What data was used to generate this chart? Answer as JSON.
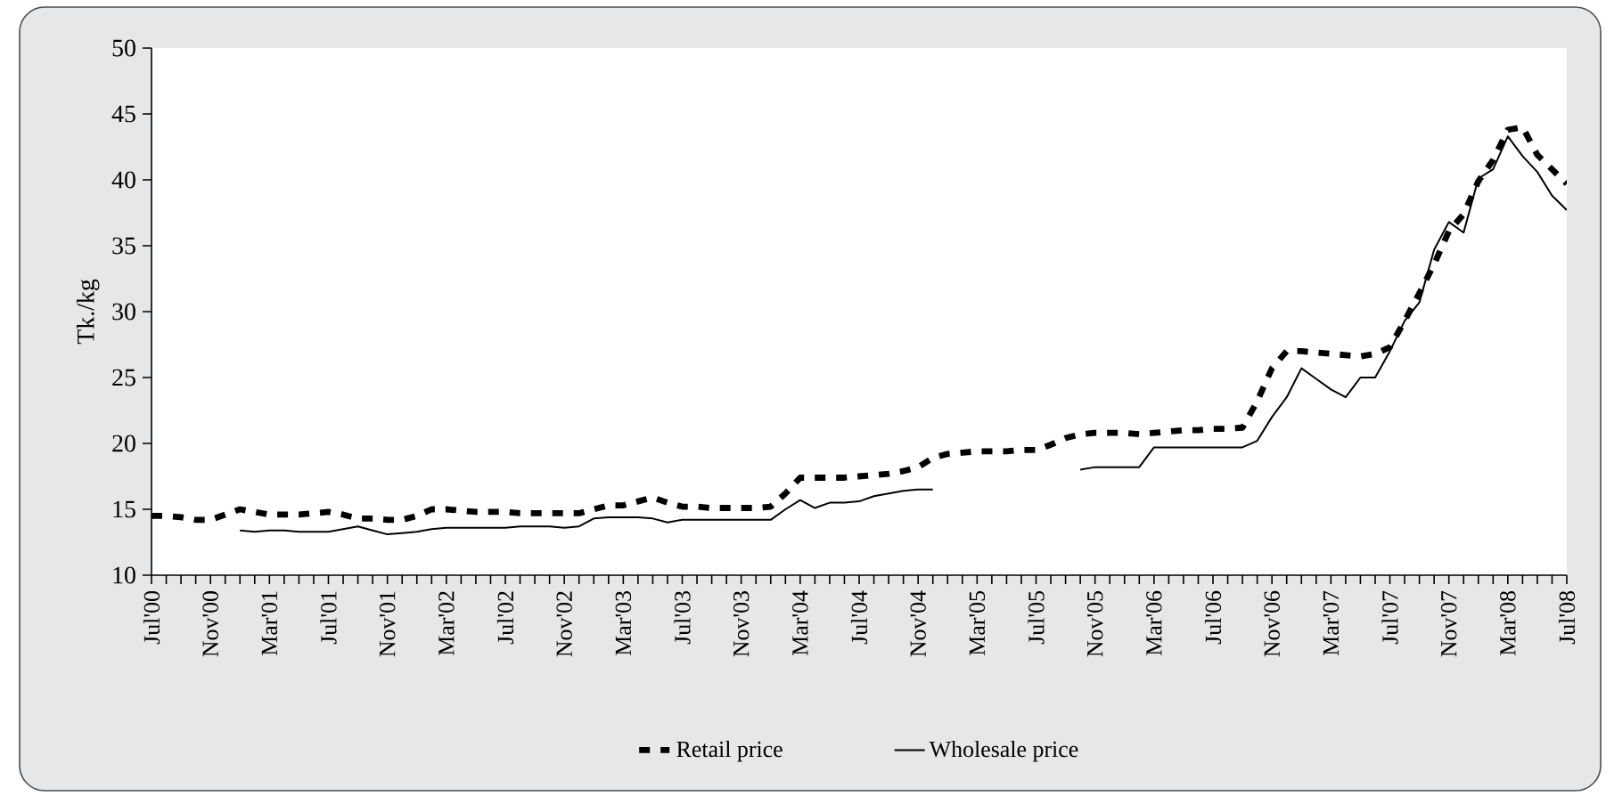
{
  "chart_data": {
    "type": "line",
    "ylabel": "Tk./kg",
    "categories": [
      "Jul'00",
      null,
      null,
      null,
      "Nov'00",
      null,
      null,
      null,
      "Mar'01",
      null,
      null,
      null,
      "Jul'01",
      null,
      null,
      null,
      "Nov'01",
      null,
      null,
      null,
      "Mar'02",
      null,
      null,
      null,
      "Jul'02",
      null,
      null,
      null,
      "Nov'02",
      null,
      null,
      null,
      "Mar'03",
      null,
      null,
      null,
      "Jul'03",
      null,
      null,
      null,
      "Nov'03",
      null,
      null,
      null,
      "Mar'04",
      null,
      null,
      null,
      "Jul'04",
      null,
      null,
      null,
      "Nov'04",
      null,
      null,
      null,
      "Mar'05",
      null,
      null,
      null,
      "Jul'05",
      null,
      null,
      null,
      "Nov'05",
      null,
      null,
      null,
      "Mar'06",
      null,
      null,
      null,
      "Jul'06",
      null,
      null,
      null,
      "Nov'06",
      null,
      null,
      null,
      "Mar'07",
      null,
      null,
      null,
      "Jul'07",
      null,
      null,
      null,
      "Nov'07",
      null,
      null,
      null,
      "Mar'08",
      null,
      null,
      null,
      "Jul'08"
    ],
    "series": [
      {
        "name": "Retail price",
        "color": "#000000",
        "line_style": "dashed",
        "values": [
          14.5,
          14.5,
          14.4,
          14.2,
          14.2,
          14.6,
          15.0,
          14.8,
          14.6,
          14.6,
          14.6,
          14.7,
          14.8,
          14.6,
          14.3,
          14.3,
          14.2,
          14.2,
          14.5,
          15.0,
          15.0,
          14.9,
          14.8,
          14.8,
          14.8,
          14.7,
          14.7,
          14.7,
          14.7,
          14.7,
          15.0,
          15.3,
          15.3,
          15.6,
          15.9,
          15.5,
          15.2,
          15.2,
          15.1,
          15.1,
          15.1,
          15.1,
          15.2,
          16.2,
          17.4,
          17.4,
          17.4,
          17.4,
          17.5,
          17.6,
          17.7,
          17.9,
          18.2,
          18.9,
          19.2,
          19.3,
          19.4,
          19.4,
          19.4,
          19.5,
          19.5,
          19.9,
          20.4,
          20.7,
          20.8,
          20.8,
          20.8,
          20.7,
          20.8,
          20.9,
          21.0,
          21.0,
          21.1,
          21.1,
          21.2,
          23.2,
          25.7,
          27.0,
          27.0,
          26.9,
          26.8,
          26.7,
          26.6,
          26.8,
          27.3,
          29.3,
          31.4,
          33.6,
          36.1,
          37.4,
          39.9,
          41.5,
          43.8,
          44.0,
          41.9,
          40.8,
          39.7
        ]
      },
      {
        "name": "Wholesale price",
        "color": "#000000",
        "line_style": "solid",
        "values": [
          null,
          null,
          null,
          null,
          null,
          null,
          13.4,
          13.3,
          13.4,
          13.4,
          13.3,
          13.3,
          13.3,
          13.5,
          13.7,
          13.4,
          13.1,
          13.2,
          13.3,
          13.5,
          13.6,
          13.6,
          13.6,
          13.6,
          13.6,
          13.7,
          13.7,
          13.7,
          13.6,
          13.7,
          14.3,
          14.4,
          14.4,
          14.4,
          14.3,
          14.0,
          14.2,
          14.2,
          14.2,
          14.2,
          14.2,
          14.2,
          14.2,
          15.0,
          15.7,
          15.1,
          15.5,
          15.5,
          15.6,
          16.0,
          16.2,
          16.4,
          16.5,
          16.5,
          null,
          null,
          null,
          null,
          null,
          null,
          null,
          null,
          null,
          18.0,
          18.2,
          18.2,
          18.2,
          18.2,
          19.7,
          19.7,
          19.7,
          19.7,
          19.7,
          19.7,
          19.7,
          20.2,
          22.0,
          23.5,
          25.7,
          24.9,
          24.1,
          23.5,
          25.0,
          25.0,
          27.0,
          29.3,
          30.7,
          34.7,
          36.8,
          36.0,
          40.1,
          40.8,
          43.3,
          41.8,
          40.6,
          38.8,
          37.7
        ]
      }
    ],
    "ylim": [
      10,
      50
    ],
    "yticks": [
      10,
      15,
      20,
      25,
      30,
      35,
      40,
      45,
      50
    ],
    "legend": "bottom"
  }
}
